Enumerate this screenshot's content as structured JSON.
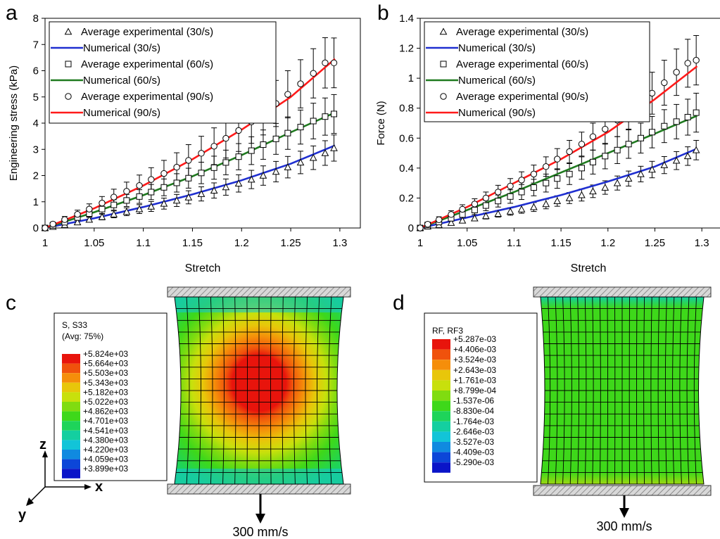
{
  "panels": [
    {
      "letter": "a"
    },
    {
      "letter": "b"
    },
    {
      "letter": "c"
    },
    {
      "letter": "d"
    }
  ],
  "chart_data": [
    {
      "type": "line",
      "panel": "a",
      "xlabel": "Stretch",
      "ylabel": "Engineering stress (kPa)",
      "xlim": [
        1,
        1.3
      ],
      "ylim": [
        0,
        8
      ],
      "xticks": [
        "1",
        "1.05",
        "1.1",
        "1.15",
        "1.2",
        "1.25",
        "1.3"
      ],
      "yticks": [
        "0",
        "1",
        "2",
        "3",
        "4",
        "5",
        "6",
        "7",
        "8"
      ],
      "legend_position": "top-left",
      "grid": false,
      "legend": [
        {
          "label": "Average experimental (30/s)",
          "kind": "marker",
          "marker": "triangle"
        },
        {
          "label": "Numerical (30/s)",
          "kind": "line",
          "color": "#1f2fd0"
        },
        {
          "label": "Average experimental (60/s)",
          "kind": "marker",
          "marker": "square"
        },
        {
          "label": "Numerical (60/s)",
          "kind": "line",
          "color": "#1f7a1f"
        },
        {
          "label": "Average experimental (90/s)",
          "kind": "marker",
          "marker": "circle"
        },
        {
          "label": "Numerical (90/s)",
          "kind": "line",
          "color": "#ff1a1a"
        }
      ],
      "numerical": [
        {
          "name": "Numerical (30/s)",
          "color": "#1f2fd0",
          "x": [
            1,
            1.05,
            1.1,
            1.15,
            1.2,
            1.25,
            1.295
          ],
          "y": [
            0,
            0.37,
            0.8,
            1.28,
            1.82,
            2.45,
            3.15
          ]
        },
        {
          "name": "Numerical (60/s)",
          "color": "#1f7a1f",
          "x": [
            1,
            1.05,
            1.1,
            1.15,
            1.2,
            1.25,
            1.295
          ],
          "y": [
            0,
            0.6,
            1.25,
            1.97,
            2.78,
            3.65,
            4.4
          ]
        },
        {
          "name": "Numerical (90/s)",
          "color": "#ff1a1a",
          "x": [
            1,
            1.05,
            1.1,
            1.15,
            1.2,
            1.25,
            1.295
          ],
          "y": [
            0,
            0.75,
            1.62,
            2.62,
            3.75,
            5.0,
            6.45
          ]
        }
      ],
      "experimental": [
        {
          "name": "Average experimental (30/s)",
          "marker": "triangle",
          "x": [
            1,
            1.008,
            1.02,
            1.033,
            1.045,
            1.058,
            1.07,
            1.083,
            1.096,
            1.108,
            1.121,
            1.134,
            1.146,
            1.159,
            1.172,
            1.184,
            1.197,
            1.21,
            1.222,
            1.235,
            1.247,
            1.26,
            1.273,
            1.285,
            1.294
          ],
          "y": [
            0,
            0.05,
            0.12,
            0.22,
            0.32,
            0.42,
            0.52,
            0.62,
            0.72,
            0.82,
            0.93,
            1.05,
            1.17,
            1.3,
            1.43,
            1.56,
            1.7,
            1.85,
            2.0,
            2.15,
            2.32,
            2.5,
            2.68,
            2.86,
            3.05
          ],
          "err": [
            0,
            0.03,
            0.05,
            0.07,
            0.09,
            0.11,
            0.13,
            0.15,
            0.17,
            0.19,
            0.21,
            0.23,
            0.25,
            0.27,
            0.29,
            0.31,
            0.33,
            0.35,
            0.37,
            0.39,
            0.41,
            0.43,
            0.45,
            0.47,
            0.5
          ]
        },
        {
          "name": "Average experimental (60/s)",
          "marker": "square",
          "x": [
            1,
            1.008,
            1.02,
            1.033,
            1.045,
            1.058,
            1.07,
            1.083,
            1.096,
            1.108,
            1.121,
            1.134,
            1.146,
            1.159,
            1.172,
            1.184,
            1.197,
            1.21,
            1.222,
            1.235,
            1.247,
            1.26,
            1.273,
            1.285,
            1.294
          ],
          "y": [
            0,
            0.1,
            0.22,
            0.4,
            0.55,
            0.72,
            0.88,
            1.05,
            1.2,
            1.37,
            1.55,
            1.72,
            1.9,
            2.1,
            2.3,
            2.5,
            2.72,
            2.95,
            3.18,
            3.4,
            3.62,
            3.85,
            4.08,
            4.25,
            4.35
          ],
          "err": [
            0,
            0.05,
            0.08,
            0.11,
            0.14,
            0.17,
            0.2,
            0.23,
            0.26,
            0.29,
            0.32,
            0.35,
            0.38,
            0.41,
            0.44,
            0.47,
            0.5,
            0.53,
            0.56,
            0.59,
            0.62,
            0.65,
            0.68,
            0.71,
            0.74
          ]
        },
        {
          "name": "Average experimental (90/s)",
          "marker": "circle",
          "x": [
            1,
            1.008,
            1.02,
            1.033,
            1.045,
            1.058,
            1.07,
            1.083,
            1.096,
            1.108,
            1.121,
            1.134,
            1.146,
            1.159,
            1.172,
            1.184,
            1.197,
            1.21,
            1.222,
            1.235,
            1.247,
            1.26,
            1.273,
            1.285,
            1.294
          ],
          "y": [
            0,
            0.15,
            0.32,
            0.52,
            0.72,
            0.95,
            1.18,
            1.4,
            1.62,
            1.85,
            2.08,
            2.32,
            2.58,
            2.85,
            3.12,
            3.42,
            3.72,
            4.05,
            4.4,
            4.75,
            5.1,
            5.5,
            5.9,
            6.3,
            6.3
          ],
          "err": [
            0,
            0.07,
            0.12,
            0.16,
            0.2,
            0.25,
            0.3,
            0.35,
            0.4,
            0.45,
            0.5,
            0.55,
            0.6,
            0.65,
            0.7,
            0.75,
            0.8,
            0.82,
            0.85,
            0.88,
            0.9,
            0.92,
            0.94,
            0.96,
            0.95
          ]
        }
      ]
    },
    {
      "type": "line",
      "panel": "b",
      "xlabel": "Stretch",
      "ylabel": "Force (N)",
      "xlim": [
        1,
        1.3
      ],
      "ylim": [
        0,
        1.4
      ],
      "xticks": [
        "1",
        "1.05",
        "1.1",
        "1.15",
        "1.2",
        "1.25",
        "1.3"
      ],
      "yticks": [
        "0",
        "0.2",
        "0.4",
        "0.6",
        "0.8",
        "1",
        "1.2",
        "1.4"
      ],
      "legend_position": "top-left",
      "grid": false,
      "legend": [
        {
          "label": "Average experimental (30/s)",
          "kind": "marker",
          "marker": "triangle"
        },
        {
          "label": "Numerical (30/s)",
          "kind": "line",
          "color": "#1f2fd0"
        },
        {
          "label": "Average experimental (60/s)",
          "kind": "marker",
          "marker": "square"
        },
        {
          "label": "Numerical (60/s)",
          "kind": "line",
          "color": "#1f7a1f"
        },
        {
          "label": "Average experimental (90/s)",
          "kind": "marker",
          "marker": "circle"
        },
        {
          "label": "Numerical (90/s)",
          "kind": "line",
          "color": "#ff1a1a"
        }
      ],
      "numerical": [
        {
          "name": "Numerical (30/s)",
          "color": "#1f2fd0",
          "x": [
            1,
            1.05,
            1.1,
            1.15,
            1.2,
            1.25,
            1.295
          ],
          "y": [
            0,
            0.07,
            0.14,
            0.22,
            0.31,
            0.41,
            0.53
          ]
        },
        {
          "name": "Numerical (60/s)",
          "color": "#1f7a1f",
          "x": [
            1,
            1.05,
            1.1,
            1.15,
            1.2,
            1.25,
            1.295
          ],
          "y": [
            0,
            0.12,
            0.24,
            0.37,
            0.5,
            0.63,
            0.75
          ]
        },
        {
          "name": "Numerical (90/s)",
          "color": "#ff1a1a",
          "x": [
            1,
            1.05,
            1.1,
            1.15,
            1.2,
            1.25,
            1.295
          ],
          "y": [
            0,
            0.14,
            0.3,
            0.46,
            0.64,
            0.86,
            1.08
          ]
        }
      ],
      "experimental": [
        {
          "name": "Average experimental (30/s)",
          "marker": "triangle",
          "x": [
            1,
            1.008,
            1.02,
            1.033,
            1.045,
            1.058,
            1.07,
            1.083,
            1.096,
            1.108,
            1.121,
            1.134,
            1.146,
            1.159,
            1.172,
            1.184,
            1.197,
            1.21,
            1.222,
            1.235,
            1.247,
            1.26,
            1.273,
            1.285,
            1.294
          ],
          "y": [
            0,
            0.01,
            0.02,
            0.035,
            0.05,
            0.065,
            0.08,
            0.095,
            0.11,
            0.125,
            0.14,
            0.16,
            0.18,
            0.2,
            0.22,
            0.245,
            0.27,
            0.3,
            0.33,
            0.36,
            0.39,
            0.42,
            0.45,
            0.48,
            0.52
          ],
          "err": [
            0,
            0.005,
            0.01,
            0.012,
            0.015,
            0.018,
            0.02,
            0.022,
            0.025,
            0.027,
            0.03,
            0.032,
            0.035,
            0.037,
            0.04,
            0.042,
            0.045,
            0.047,
            0.05,
            0.052,
            0.055,
            0.057,
            0.06,
            0.062,
            0.065
          ]
        },
        {
          "name": "Average experimental (60/s)",
          "marker": "square",
          "x": [
            1,
            1.008,
            1.02,
            1.033,
            1.045,
            1.058,
            1.07,
            1.083,
            1.096,
            1.108,
            1.121,
            1.134,
            1.146,
            1.159,
            1.172,
            1.184,
            1.197,
            1.21,
            1.222,
            1.235,
            1.247,
            1.26,
            1.273,
            1.285,
            1.294
          ],
          "y": [
            0,
            0.02,
            0.04,
            0.065,
            0.09,
            0.12,
            0.15,
            0.18,
            0.21,
            0.24,
            0.27,
            0.3,
            0.33,
            0.36,
            0.4,
            0.44,
            0.48,
            0.52,
            0.56,
            0.6,
            0.64,
            0.68,
            0.71,
            0.74,
            0.77
          ],
          "err": [
            0,
            0.01,
            0.015,
            0.02,
            0.025,
            0.03,
            0.035,
            0.04,
            0.045,
            0.05,
            0.055,
            0.06,
            0.065,
            0.07,
            0.075,
            0.08,
            0.085,
            0.09,
            0.095,
            0.1,
            0.105,
            0.11,
            0.115,
            0.12,
            0.13
          ]
        },
        {
          "name": "Average experimental (90/s)",
          "marker": "circle",
          "x": [
            1,
            1.008,
            1.02,
            1.033,
            1.045,
            1.058,
            1.07,
            1.083,
            1.096,
            1.108,
            1.121,
            1.134,
            1.146,
            1.159,
            1.172,
            1.184,
            1.197,
            1.21,
            1.222,
            1.235,
            1.247,
            1.26,
            1.273,
            1.285,
            1.294
          ],
          "y": [
            0,
            0.025,
            0.055,
            0.09,
            0.125,
            0.16,
            0.2,
            0.24,
            0.28,
            0.32,
            0.36,
            0.41,
            0.46,
            0.51,
            0.56,
            0.61,
            0.66,
            0.72,
            0.78,
            0.84,
            0.9,
            0.97,
            1.04,
            1.1,
            1.12
          ],
          "err": [
            0,
            0.012,
            0.02,
            0.025,
            0.03,
            0.035,
            0.04,
            0.045,
            0.05,
            0.055,
            0.06,
            0.065,
            0.07,
            0.075,
            0.08,
            0.09,
            0.1,
            0.11,
            0.12,
            0.13,
            0.14,
            0.15,
            0.155,
            0.16,
            0.165
          ]
        }
      ]
    }
  ],
  "contours": [
    {
      "panel": "c",
      "title_line1": "S, S33",
      "title_line2": "(Avg: 75%)",
      "levels": [
        "+5.824e+03",
        "+5.664e+03",
        "+5.503e+03",
        "+5.343e+03",
        "+5.182e+03",
        "+5.022e+03",
        "+4.862e+03",
        "+4.701e+03",
        "+4.541e+03",
        "+4.380e+03",
        "+4.220e+03",
        "+4.059e+03",
        "+3.899e+03"
      ],
      "colors": [
        "#e8140c",
        "#f0520c",
        "#f58e0a",
        "#e8c60a",
        "#c8e00c",
        "#80dc10",
        "#3ed81a",
        "#1ed45a",
        "#14cfa0",
        "#12c4d8",
        "#108ae0",
        "#0c46d8",
        "#0a14c8"
      ],
      "speed_label": "300 mm/s",
      "axis_z": "z",
      "axis_x": "x",
      "axis_y": "y"
    },
    {
      "panel": "d",
      "title_line1": "RF, RF3",
      "levels": [
        "+5.287e-03",
        "+4.406e-03",
        "+3.524e-03",
        "+2.643e-03",
        "+1.761e-03",
        "+8.799e-04",
        "-1.537e-06",
        "-8.830e-04",
        "-1.764e-03",
        "-2.646e-03",
        "-3.527e-03",
        "-4.409e-03",
        "-5.290e-03"
      ],
      "colors": [
        "#e8140c",
        "#f0520c",
        "#f58e0a",
        "#e8c60a",
        "#c8e00c",
        "#80dc10",
        "#3ed81a",
        "#1ed45a",
        "#14cfa0",
        "#12c4d8",
        "#108ae0",
        "#0c46d8",
        "#0a14c8"
      ],
      "speed_label": "300 mm/s"
    }
  ]
}
